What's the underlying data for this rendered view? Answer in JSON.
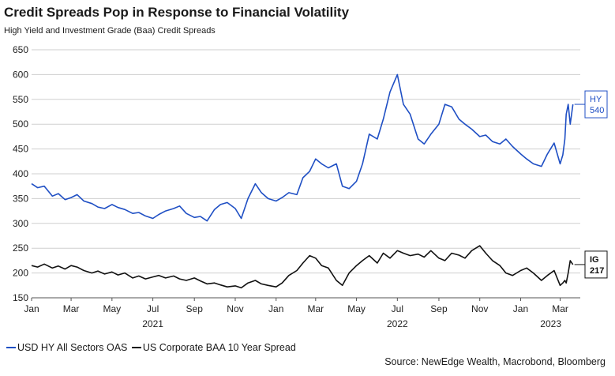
{
  "header": {
    "title": "Credit Spreads Pop in Response to Financial Volatility",
    "subtitle": "High Yield and Investment Grade (Baa) Credit Spreads"
  },
  "source": "Source: NewEdge Wealth, Macrobond, Bloomberg",
  "colors": {
    "hy": "#1f4fc4",
    "ig": "#111111",
    "grid": "#cfcfcf",
    "axis": "#555555"
  },
  "chart_data": {
    "type": "line",
    "title": "Credit Spreads Pop in Response to Financial Volatility",
    "subtitle": "High Yield and Investment Grade (Baa) Credit Spreads",
    "xlabel": "",
    "ylabel": "",
    "ylim": [
      150,
      650
    ],
    "yticks": [
      150,
      200,
      250,
      300,
      350,
      400,
      450,
      500,
      550,
      600,
      650
    ],
    "xlim": [
      "2021-01-01",
      "2023-03-31"
    ],
    "xticks": [
      {
        "date": "2021-01-01",
        "label": "Jan"
      },
      {
        "date": "2021-03-01",
        "label": "Mar"
      },
      {
        "date": "2021-05-01",
        "label": "May"
      },
      {
        "date": "2021-07-01",
        "label": "Jul"
      },
      {
        "date": "2021-09-01",
        "label": "Sep"
      },
      {
        "date": "2021-11-01",
        "label": "Nov"
      },
      {
        "date": "2022-01-01",
        "label": "Jan"
      },
      {
        "date": "2022-03-01",
        "label": "Mar"
      },
      {
        "date": "2022-05-01",
        "label": "May"
      },
      {
        "date": "2022-07-01",
        "label": "Jul"
      },
      {
        "date": "2022-09-01",
        "label": "Sep"
      },
      {
        "date": "2022-11-01",
        "label": "Nov"
      },
      {
        "date": "2023-01-01",
        "label": "Jan"
      },
      {
        "date": "2023-03-01",
        "label": "Mar"
      }
    ],
    "year_labels": [
      {
        "date": "2021-07-01",
        "label": "2021"
      },
      {
        "date": "2022-07-01",
        "label": "2022"
      },
      {
        "date": "2023-02-15",
        "label": "2023"
      }
    ],
    "grid": true,
    "legend": "bottom-left",
    "series": [
      {
        "name": "USD HY All Sectors OAS",
        "end_label": [
          "HY",
          "540"
        ],
        "x": [
          "2021-01-01",
          "2021-01-10",
          "2021-01-20",
          "2021-02-01",
          "2021-02-10",
          "2021-02-20",
          "2021-03-01",
          "2021-03-10",
          "2021-03-20",
          "2021-04-01",
          "2021-04-10",
          "2021-04-20",
          "2021-05-01",
          "2021-05-10",
          "2021-05-20",
          "2021-06-01",
          "2021-06-10",
          "2021-06-20",
          "2021-07-01",
          "2021-07-10",
          "2021-07-20",
          "2021-08-01",
          "2021-08-10",
          "2021-08-20",
          "2021-09-01",
          "2021-09-10",
          "2021-09-20",
          "2021-10-01",
          "2021-10-10",
          "2021-10-20",
          "2021-11-01",
          "2021-11-10",
          "2021-11-20",
          "2021-12-01",
          "2021-12-10",
          "2021-12-20",
          "2022-01-01",
          "2022-01-10",
          "2022-01-20",
          "2022-02-01",
          "2022-02-10",
          "2022-02-20",
          "2022-03-01",
          "2022-03-10",
          "2022-03-20",
          "2022-04-01",
          "2022-04-10",
          "2022-04-20",
          "2022-05-01",
          "2022-05-10",
          "2022-05-20",
          "2022-06-01",
          "2022-06-10",
          "2022-06-20",
          "2022-07-01",
          "2022-07-10",
          "2022-07-20",
          "2022-08-01",
          "2022-08-10",
          "2022-08-20",
          "2022-09-01",
          "2022-09-10",
          "2022-09-20",
          "2022-10-01",
          "2022-10-10",
          "2022-10-20",
          "2022-11-01",
          "2022-11-10",
          "2022-11-20",
          "2022-12-01",
          "2022-12-10",
          "2022-12-20",
          "2023-01-01",
          "2023-01-10",
          "2023-01-20",
          "2023-02-01",
          "2023-02-10",
          "2023-02-20",
          "2023-03-01",
          "2023-03-05",
          "2023-03-08",
          "2023-03-10",
          "2023-03-13",
          "2023-03-16",
          "2023-03-20"
        ],
        "values": [
          380,
          372,
          375,
          355,
          360,
          348,
          352,
          358,
          345,
          340,
          333,
          330,
          338,
          332,
          328,
          320,
          322,
          315,
          310,
          318,
          325,
          330,
          335,
          320,
          312,
          314,
          305,
          328,
          338,
          342,
          330,
          310,
          350,
          380,
          362,
          350,
          345,
          352,
          362,
          358,
          392,
          405,
          430,
          420,
          412,
          420,
          375,
          370,
          385,
          420,
          480,
          470,
          510,
          565,
          600,
          540,
          520,
          470,
          460,
          480,
          500,
          540,
          535,
          510,
          500,
          490,
          475,
          478,
          465,
          460,
          470,
          455,
          440,
          430,
          420,
          415,
          440,
          462,
          420,
          438,
          470,
          520,
          540,
          500,
          540
        ]
      },
      {
        "name": "US Corporate BAA 10 Year Spread",
        "end_label": [
          "IG",
          "217"
        ],
        "x": [
          "2021-01-01",
          "2021-01-10",
          "2021-01-20",
          "2021-02-01",
          "2021-02-10",
          "2021-02-20",
          "2021-03-01",
          "2021-03-10",
          "2021-03-20",
          "2021-04-01",
          "2021-04-10",
          "2021-04-20",
          "2021-05-01",
          "2021-05-10",
          "2021-05-20",
          "2021-06-01",
          "2021-06-10",
          "2021-06-20",
          "2021-07-01",
          "2021-07-10",
          "2021-07-20",
          "2021-08-01",
          "2021-08-10",
          "2021-08-20",
          "2021-09-01",
          "2021-09-10",
          "2021-09-20",
          "2021-10-01",
          "2021-10-10",
          "2021-10-20",
          "2021-11-01",
          "2021-11-10",
          "2021-11-20",
          "2021-12-01",
          "2021-12-10",
          "2021-12-20",
          "2022-01-01",
          "2022-01-10",
          "2022-01-20",
          "2022-02-01",
          "2022-02-10",
          "2022-02-20",
          "2022-03-01",
          "2022-03-10",
          "2022-03-20",
          "2022-04-01",
          "2022-04-10",
          "2022-04-20",
          "2022-05-01",
          "2022-05-10",
          "2022-05-20",
          "2022-06-01",
          "2022-06-10",
          "2022-06-20",
          "2022-07-01",
          "2022-07-10",
          "2022-07-20",
          "2022-08-01",
          "2022-08-10",
          "2022-08-20",
          "2022-09-01",
          "2022-09-10",
          "2022-09-20",
          "2022-10-01",
          "2022-10-10",
          "2022-10-20",
          "2022-11-01",
          "2022-11-10",
          "2022-11-20",
          "2022-12-01",
          "2022-12-10",
          "2022-12-20",
          "2023-01-01",
          "2023-01-10",
          "2023-01-20",
          "2023-02-01",
          "2023-02-10",
          "2023-02-20",
          "2023-03-01",
          "2023-03-05",
          "2023-03-08",
          "2023-03-10",
          "2023-03-13",
          "2023-03-16",
          "2023-03-20"
        ],
        "values": [
          215,
          212,
          218,
          210,
          214,
          208,
          215,
          212,
          205,
          200,
          204,
          198,
          202,
          196,
          200,
          190,
          194,
          188,
          192,
          195,
          190,
          194,
          188,
          185,
          190,
          184,
          178,
          180,
          176,
          172,
          174,
          170,
          180,
          185,
          178,
          175,
          172,
          180,
          195,
          205,
          220,
          235,
          230,
          215,
          210,
          185,
          175,
          200,
          215,
          225,
          235,
          220,
          240,
          230,
          245,
          240,
          235,
          238,
          232,
          245,
          230,
          225,
          240,
          236,
          230,
          245,
          255,
          240,
          225,
          215,
          200,
          195,
          205,
          210,
          200,
          185,
          195,
          205,
          175,
          180,
          185,
          180,
          200,
          225,
          217
        ]
      }
    ]
  }
}
